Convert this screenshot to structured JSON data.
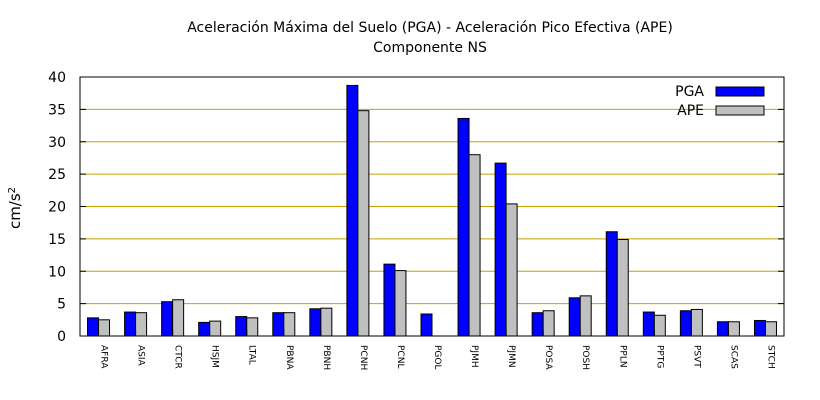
{
  "chart_data": {
    "type": "bar",
    "title": "Aceleración Máxima del Suelo (PGA) -  Aceleración Pico Efectiva (APE)",
    "subtitle": "Componente NS",
    "ylabel": "cm/s",
    "ylabel_superscript": "2",
    "ylim": [
      0,
      40
    ],
    "yticks": [
      0,
      5,
      10,
      15,
      20,
      25,
      30,
      35,
      40
    ],
    "grid": "horizontal",
    "legend_position": "top-right",
    "categories": [
      "AFRA",
      "ASIA",
      "CTCR",
      "HSJM",
      "LTAL",
      "PBNA",
      "PBNH",
      "PCNH",
      "PCNL",
      "PGOL",
      "PJMH",
      "PJMN",
      "POSA",
      "POSH",
      "PPLN",
      "PPTG",
      "PSVT",
      "SCAS",
      "STCH"
    ],
    "series": [
      {
        "name": "PGA",
        "color": "#0000ff",
        "values": [
          2.8,
          3.7,
          5.3,
          2.1,
          3.0,
          3.6,
          4.2,
          38.7,
          11.1,
          3.4,
          33.6,
          26.7,
          3.6,
          5.9,
          16.1,
          3.7,
          3.9,
          2.2,
          2.4
        ]
      },
      {
        "name": "APE",
        "color": "#c0c0c0",
        "values": [
          2.5,
          3.6,
          5.6,
          2.3,
          2.8,
          3.6,
          4.3,
          34.8,
          10.1,
          0,
          28.0,
          20.4,
          3.9,
          6.2,
          14.9,
          3.2,
          4.1,
          2.2,
          2.2
        ]
      }
    ],
    "colors": {
      "grid": "#c8a000",
      "axis": "#000000"
    }
  }
}
